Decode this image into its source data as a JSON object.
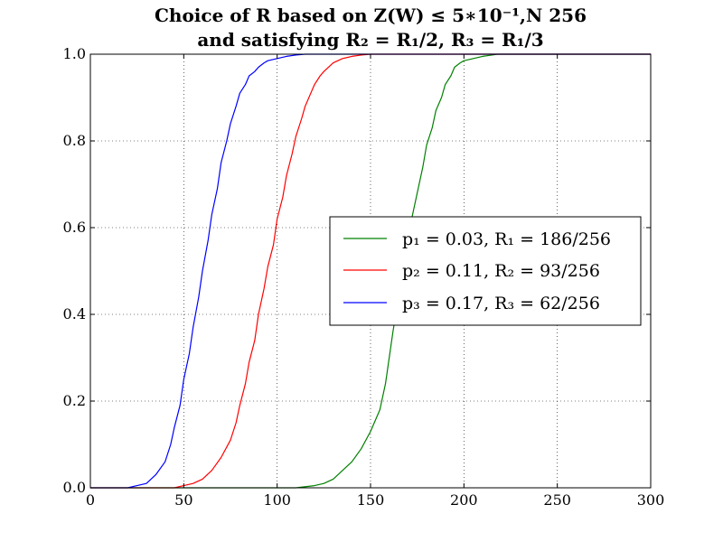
{
  "chart_data": {
    "type": "line",
    "title_line1": "Choice of R based on Z(W) ≤ 5∗10⁻¹,N 256",
    "title_line2": "and satisfying R₂ = R₁/2, R₃ = R₁/3",
    "xlabel": "",
    "ylabel": "",
    "xlim": [
      0,
      300
    ],
    "ylim": [
      0,
      1
    ],
    "xticks": [
      "0",
      "50",
      "100",
      "150",
      "200",
      "250",
      "300"
    ],
    "yticks": [
      "0.0",
      "0.2",
      "0.4",
      "0.6",
      "0.8",
      "1.0"
    ],
    "grid": true,
    "legend_position": "center-right",
    "series": [
      {
        "name": "p₁ = 0.03, R₁ = 186/256",
        "color": "#008000",
        "x": [
          0,
          110,
          120,
          125,
          130,
          135,
          140,
          145,
          150,
          155,
          158,
          160,
          162,
          165,
          167,
          170,
          172,
          175,
          178,
          180,
          183,
          185,
          188,
          190,
          193,
          195,
          198,
          200,
          205,
          210,
          215,
          218,
          300
        ],
        "y": [
          0,
          0.0,
          0.005,
          0.01,
          0.02,
          0.04,
          0.06,
          0.09,
          0.13,
          0.18,
          0.24,
          0.3,
          0.36,
          0.44,
          0.5,
          0.57,
          0.62,
          0.68,
          0.74,
          0.79,
          0.83,
          0.87,
          0.9,
          0.93,
          0.95,
          0.97,
          0.98,
          0.985,
          0.99,
          0.995,
          0.998,
          1.0,
          1.0
        ]
      },
      {
        "name": "p₂ = 0.11, R₂ = 93/256",
        "color": "#ff0000",
        "x": [
          0,
          45,
          50,
          55,
          60,
          65,
          70,
          75,
          78,
          80,
          83,
          85,
          88,
          90,
          93,
          95,
          98,
          100,
          103,
          105,
          108,
          110,
          113,
          115,
          118,
          120,
          123,
          125,
          130,
          135,
          140,
          145,
          150,
          155,
          300
        ],
        "y": [
          0,
          0.0,
          0.005,
          0.01,
          0.02,
          0.04,
          0.07,
          0.11,
          0.15,
          0.19,
          0.24,
          0.29,
          0.34,
          0.4,
          0.46,
          0.51,
          0.56,
          0.62,
          0.67,
          0.72,
          0.77,
          0.81,
          0.85,
          0.88,
          0.91,
          0.93,
          0.95,
          0.96,
          0.98,
          0.99,
          0.995,
          0.998,
          1.0,
          1.0,
          1.0
        ]
      },
      {
        "name": "p₃ = 0.17, R₃ = 62/256",
        "color": "#0000ff",
        "x": [
          0,
          20,
          25,
          30,
          35,
          40,
          43,
          45,
          48,
          50,
          53,
          55,
          58,
          60,
          63,
          65,
          68,
          70,
          73,
          75,
          78,
          80,
          83,
          85,
          88,
          90,
          93,
          95,
          100,
          105,
          110,
          115,
          120,
          125,
          300
        ],
        "y": [
          0,
          0.0,
          0.005,
          0.01,
          0.03,
          0.06,
          0.1,
          0.14,
          0.19,
          0.25,
          0.31,
          0.37,
          0.44,
          0.5,
          0.57,
          0.63,
          0.69,
          0.75,
          0.8,
          0.84,
          0.88,
          0.91,
          0.93,
          0.95,
          0.96,
          0.97,
          0.98,
          0.985,
          0.99,
          0.995,
          0.998,
          1.0,
          1.0,
          1.0,
          1.0
        ]
      }
    ]
  }
}
